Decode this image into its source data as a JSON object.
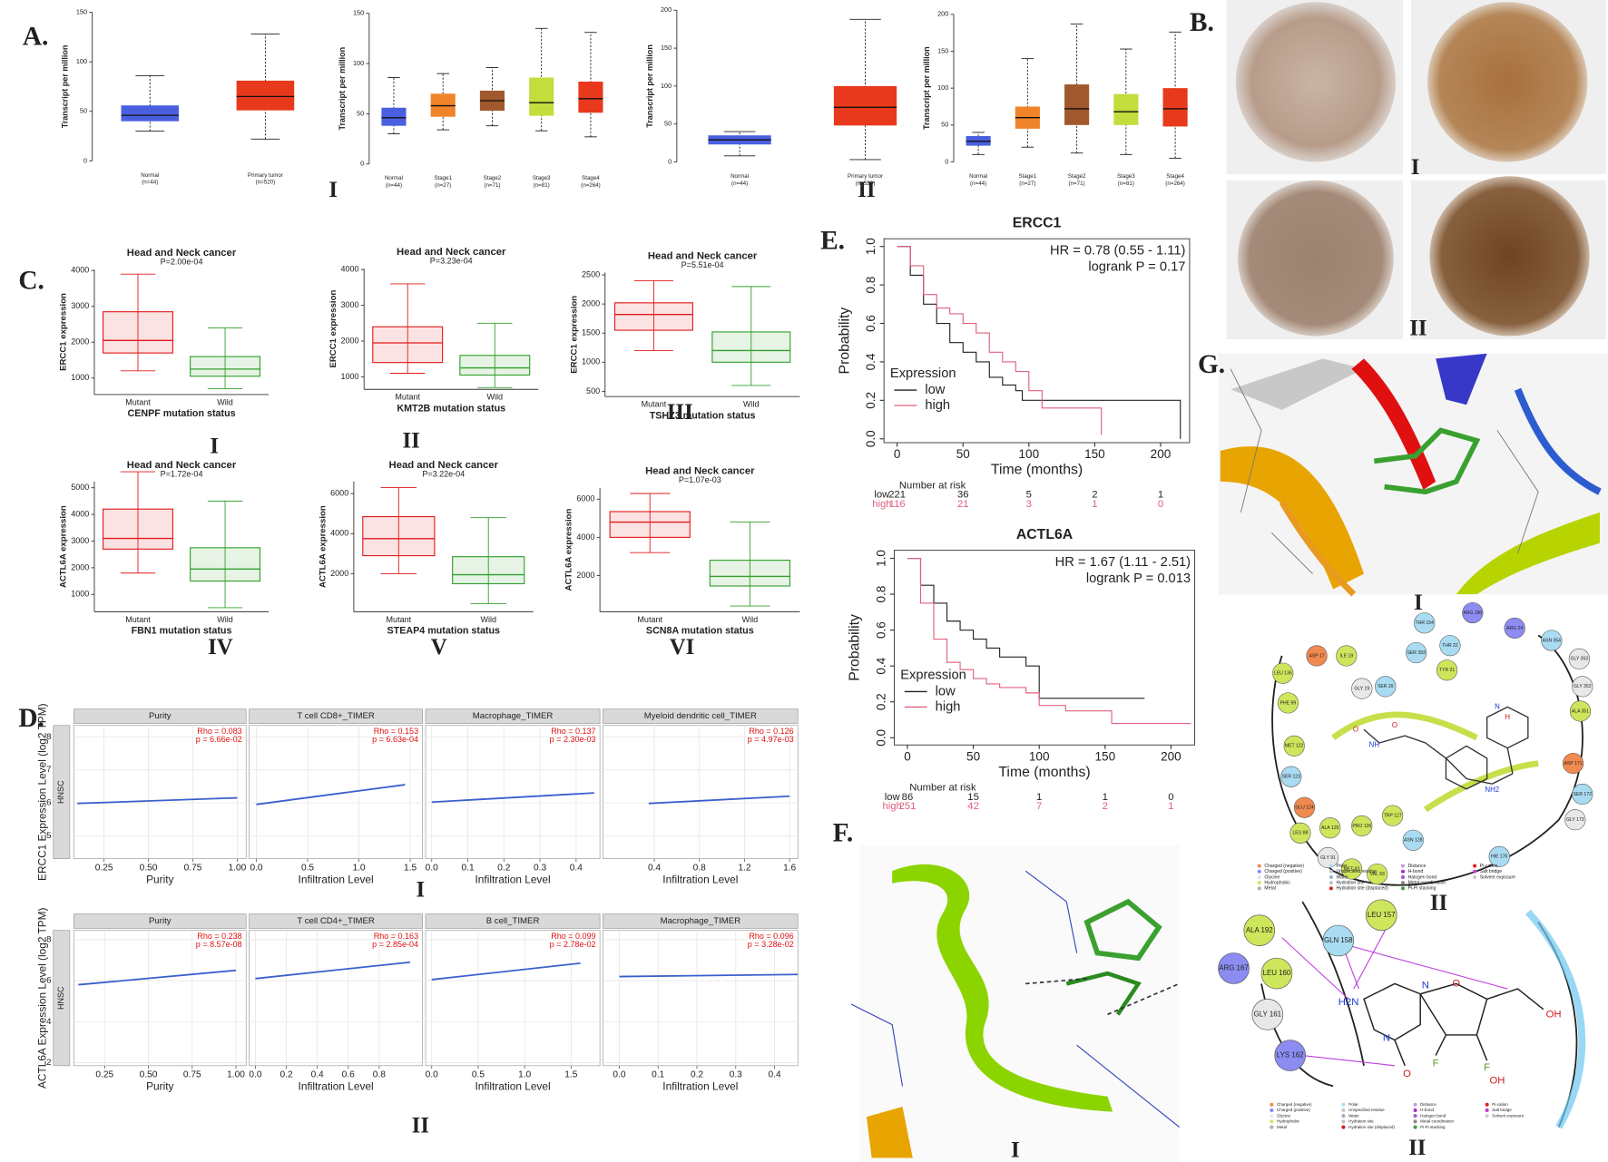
{
  "panel_labels": [
    "A.",
    "B.",
    "C.",
    "D.",
    "E.",
    "F.",
    "G."
  ],
  "numerals": [
    "I",
    "II",
    "I",
    "II",
    "I",
    "II",
    "III",
    "IV",
    "V",
    "VI",
    "I",
    "II",
    "I",
    "II",
    "I",
    "II"
  ],
  "chart_data": [
    {
      "type": "box",
      "ylabel": "Transcript per million",
      "ylim": [
        0,
        150
      ],
      "yticks": [
        0,
        50,
        100,
        150
      ],
      "categories": [
        "Normal",
        "Primary tumor"
      ],
      "n_labels": [
        "(n=44)",
        "(n=520)"
      ],
      "colors": [
        "#4a5fe0",
        "#e8391c"
      ],
      "boxes": [
        {
          "min": 30,
          "q1": 40,
          "median": 46,
          "q3": 56,
          "max": 86
        },
        {
          "min": 22,
          "q1": 51,
          "median": 65,
          "q3": 81,
          "max": 128
        }
      ]
    },
    {
      "type": "box",
      "ylabel": "Transcript per million",
      "ylim": [
        0,
        150
      ],
      "yticks": [
        0,
        50,
        100,
        150
      ],
      "categories": [
        "Normal",
        "Stage1",
        "Stage2",
        "Stage3",
        "Stage4"
      ],
      "n_labels": [
        "(n=44)",
        "(n=27)",
        "(n=71)",
        "(n=81)",
        "(n=264)"
      ],
      "colors": [
        "#4a5fe0",
        "#f0842a",
        "#a0582c",
        "#c3dd3c",
        "#e8391c"
      ],
      "boxes": [
        {
          "min": 30,
          "q1": 38,
          "median": 46,
          "q3": 56,
          "max": 86
        },
        {
          "min": 34,
          "q1": 47,
          "median": 58,
          "q3": 70,
          "max": 90
        },
        {
          "min": 38,
          "q1": 53,
          "median": 63,
          "q3": 73,
          "max": 96
        },
        {
          "min": 33,
          "q1": 48,
          "median": 61,
          "q3": 86,
          "max": 135
        },
        {
          "min": 27,
          "q1": 51,
          "median": 65,
          "q3": 82,
          "max": 131
        }
      ]
    },
    {
      "type": "box",
      "ylabel": "Transcript per million",
      "ylim": [
        0,
        200
      ],
      "yticks": [
        0,
        50,
        100,
        150,
        200
      ],
      "categories": [
        "Normal",
        "Primary tumor"
      ],
      "n_labels": [
        "(n=44)",
        "(n=520)"
      ],
      "colors": [
        "#4a5fe0",
        "#e8391c"
      ],
      "boxes": [
        {
          "min": 8,
          "q1": 23,
          "median": 29,
          "q3": 35,
          "max": 40
        },
        {
          "min": 3,
          "q1": 48,
          "median": 72,
          "q3": 100,
          "max": 188
        }
      ]
    },
    {
      "type": "box",
      "ylabel": "Transcript per million",
      "ylim": [
        0,
        200
      ],
      "yticks": [
        0,
        50,
        100,
        150,
        200
      ],
      "categories": [
        "Normal",
        "Stage1",
        "Stage2",
        "Stage3",
        "Stage4"
      ],
      "n_labels": [
        "(n=44)",
        "(n=27)",
        "(n=71)",
        "(n=81)",
        "(n=264)"
      ],
      "colors": [
        "#4a5fe0",
        "#f0842a",
        "#a0582c",
        "#c3dd3c",
        "#e8391c"
      ],
      "boxes": [
        {
          "min": 10,
          "q1": 22,
          "median": 28,
          "q3": 35,
          "max": 40
        },
        {
          "min": 20,
          "q1": 45,
          "median": 60,
          "q3": 75,
          "max": 140
        },
        {
          "min": 12,
          "q1": 50,
          "median": 72,
          "q3": 105,
          "max": 187
        },
        {
          "min": 10,
          "q1": 50,
          "median": 68,
          "q3": 92,
          "max": 153
        },
        {
          "min": 5,
          "q1": 48,
          "median": 72,
          "q3": 100,
          "max": 176
        }
      ]
    },
    {
      "type": "box",
      "title": "Head and Neck cancer",
      "subtitle": "P=2.00e-04",
      "ylabel": "ERCC1 expression",
      "xlabel": "CENPF mutation status",
      "ylim": [
        540,
        4030
      ],
      "yticks": [
        1000,
        2000,
        3000,
        4000
      ],
      "categories": [
        "Mutant",
        "Wild"
      ],
      "colors": [
        "#e31a1c",
        "#33a02c"
      ],
      "boxes": [
        {
          "min": 1200,
          "q1": 1700,
          "median": 2050,
          "q3": 2850,
          "max": 3900
        },
        {
          "min": 700,
          "q1": 1050,
          "median": 1250,
          "q3": 1600,
          "max": 2400
        }
      ]
    },
    {
      "type": "box",
      "title": "Head and Neck cancer",
      "subtitle": "P=3.23e-04",
      "ylabel": "ERCC1 expression",
      "xlabel": "KMT2B mutation status",
      "ylim": [
        650,
        4030
      ],
      "yticks": [
        1000,
        2000,
        3000,
        4000
      ],
      "categories": [
        "Mutant",
        "Wild"
      ],
      "colors": [
        "#e31a1c",
        "#33a02c"
      ],
      "boxes": [
        {
          "min": 1100,
          "q1": 1400,
          "median": 1950,
          "q3": 2400,
          "max": 3600
        },
        {
          "min": 700,
          "q1": 1050,
          "median": 1250,
          "q3": 1600,
          "max": 2500
        }
      ]
    },
    {
      "type": "box",
      "title": "Head and Neck cancer",
      "subtitle": "P=5.51e-04",
      "ylabel": "ERCC1 expression",
      "xlabel": "TSHZ3 mutation status",
      "ylim": [
        410,
        2540
      ],
      "yticks": [
        500,
        1000,
        1500,
        2000,
        2500
      ],
      "categories": [
        "Mutant",
        "Wild"
      ],
      "colors": [
        "#e31a1c",
        "#33a02c"
      ],
      "boxes": [
        {
          "min": 1200,
          "q1": 1550,
          "median": 1820,
          "q3": 2020,
          "max": 2400
        },
        {
          "min": 600,
          "q1": 1000,
          "median": 1200,
          "q3": 1520,
          "max": 2300
        }
      ]
    },
    {
      "type": "box",
      "title": "Head and Neck cancer",
      "subtitle": "P=1.72e-04",
      "ylabel": "ACTL6A expression",
      "xlabel": "FBN1 mutation status",
      "ylim": [
        350,
        5230
      ],
      "yticks": [
        1000,
        2000,
        3000,
        4000,
        5000
      ],
      "categories": [
        "Mutant",
        "Wild"
      ],
      "colors": [
        "#e31a1c",
        "#33a02c"
      ],
      "boxes": [
        {
          "min": 1800,
          "q1": 2700,
          "median": 3100,
          "q3": 4200,
          "max": 5600
        },
        {
          "min": 500,
          "q1": 1500,
          "median": 1950,
          "q3": 2750,
          "max": 4500
        }
      ]
    },
    {
      "type": "box",
      "title": "Head and Neck cancer",
      "subtitle": "P=3.22e-04",
      "ylabel": "ACTL6A expression",
      "xlabel": "STEAP4 mutation status",
      "ylim": [
        100,
        6600
      ],
      "yticks": [
        2000,
        4000,
        6000
      ],
      "categories": [
        "Mutant",
        "Wild"
      ],
      "colors": [
        "#e31a1c",
        "#33a02c"
      ],
      "boxes": [
        {
          "min": 2000,
          "q1": 2900,
          "median": 3750,
          "q3": 4850,
          "max": 6300
        },
        {
          "min": 500,
          "q1": 1500,
          "median": 1950,
          "q3": 2850,
          "max": 4800
        }
      ]
    },
    {
      "type": "box",
      "title": "Head and Neck cancer",
      "subtitle": "P=1.07e-03",
      "ylabel": "ACTL6A expression",
      "xlabel": "SCN8A mutation status",
      "ylim": [
        100,
        6600
      ],
      "yticks": [
        2000,
        4000,
        6000
      ],
      "categories": [
        "Mutant",
        "Wild"
      ],
      "colors": [
        "#e31a1c",
        "#33a02c"
      ],
      "boxes": [
        {
          "min": 3200,
          "q1": 4000,
          "median": 4800,
          "q3": 5350,
          "max": 6300
        },
        {
          "min": 400,
          "q1": 1450,
          "median": 1950,
          "q3": 2800,
          "max": 4800
        }
      ]
    },
    {
      "type": "facets",
      "ylabel": "ERCC1 Expression Level (log2 TPM)",
      "strip": "HNSC",
      "ylim": [
        4.3,
        8.35
      ],
      "yticks": [
        5,
        6,
        7,
        8
      ],
      "fit_color": "#3a5fcd",
      "panels": [
        {
          "title": "Purity",
          "xlabel": "Purity",
          "xlim": [
            0.08,
            1.05
          ],
          "xticks": [
            0.25,
            {
              "value": 0.5,
              "label": "0.50"
            },
            0.75,
            {
              "value": 1,
              "label": "1.00"
            }
          ],
          "annotations": [
            "Rho = 0.083",
            "p = 6.66e-02"
          ],
          "fit": {
            "x": [
              0.1,
              1.0
            ],
            "y": [
              5.98,
              6.15
            ]
          }
        },
        {
          "title": "T cell CD8+_TIMER",
          "xlabel": "Infiltration Level",
          "xlim": [
            -0.07,
            1.62
          ],
          "xticks": [
            {
              "value": 0,
              "label": "0.0"
            },
            0.5,
            {
              "value": 1,
              "label": "1.0"
            },
            1.5
          ],
          "annotations": [
            "Rho = 0.153",
            "p = 6.63e-04"
          ],
          "fit": {
            "x": [
              0.0,
              1.45
            ],
            "y": [
              5.95,
              6.55
            ]
          }
        },
        {
          "title": "Macrophage_TIMER",
          "xlabel": "Infiltration Level",
          "xlim": [
            -0.017,
            0.466
          ],
          "xticks": [
            {
              "value": 0,
              "label": "0.0"
            },
            0.1,
            0.2,
            0.3,
            0.4
          ],
          "annotations": [
            "Rho = 0.137",
            "p = 2.30e-03"
          ],
          "fit": {
            "x": [
              0.0,
              0.45
            ],
            "y": [
              6.02,
              6.3
            ]
          }
        },
        {
          "title": "Myeloid dendritic cell_TIMER",
          "xlabel": "Infiltration Level",
          "xlim": [
            -0.055,
            1.673
          ],
          "xticks": [
            0.4,
            0.8,
            1.2,
            1.6
          ],
          "annotations": [
            "Rho = 0.126",
            "p = 4.97e-03"
          ],
          "fit": {
            "x": [
              0.35,
              1.6
            ],
            "y": [
              5.98,
              6.2
            ]
          }
        }
      ]
    },
    {
      "type": "facets",
      "ylabel": "ACTL6A Expression Level (log2 TPM)",
      "strip": "HNSC",
      "ylim": [
        1.85,
        8.45
      ],
      "yticks": [
        2,
        4,
        6,
        8
      ],
      "fit_color": "#3a5fcd",
      "panels": [
        {
          "title": "Purity",
          "xlabel": "Purity",
          "xlim": [
            0.074,
            1.058
          ],
          "xticks": [
            0.25,
            {
              "value": 0.5,
              "label": "0.50"
            },
            0.75,
            {
              "value": 1,
              "label": "1.00"
            }
          ],
          "annotations": [
            "Rho = 0.238",
            "p = 8.57e-08"
          ],
          "fit": {
            "x": [
              0.1,
              1.0
            ],
            "y": [
              5.8,
              6.5
            ]
          }
        },
        {
          "title": "T cell CD4+_TIMER",
          "xlabel": "Infiltration Level",
          "xlim": [
            -0.04,
            1.08
          ],
          "xticks": [
            {
              "value": 0,
              "label": "0.0"
            },
            0.2,
            0.4,
            0.6,
            0.8
          ],
          "annotations": [
            "Rho = 0.163",
            "p = 2.85e-04"
          ],
          "fit": {
            "x": [
              0.0,
              1.0
            ],
            "y": [
              6.1,
              6.9
            ]
          }
        },
        {
          "title": "B cell_TIMER",
          "xlabel": "Infiltration Level",
          "xlim": [
            -0.066,
            1.81
          ],
          "xticks": [
            {
              "value": 0,
              "label": "0.0"
            },
            0.5,
            {
              "value": 1,
              "label": "1.0"
            },
            1.5
          ],
          "annotations": [
            "Rho = 0.099",
            "p = 2.78e-02"
          ],
          "fit": {
            "x": [
              0.0,
              1.6
            ],
            "y": [
              6.05,
              6.85
            ]
          }
        },
        {
          "title": "Macrophage_TIMER",
          "xlabel": "Infiltration Level",
          "xlim": [
            -0.042,
            0.46
          ],
          "xticks": [
            {
              "value": 0,
              "label": "0.0"
            },
            0.1,
            0.2,
            0.3,
            0.4
          ],
          "annotations": [
            "Rho = 0.096",
            "p = 3.28e-02"
          ],
          "fit": {
            "x": [
              0.0,
              0.46
            ],
            "y": [
              6.2,
              6.3
            ]
          }
        }
      ]
    },
    {
      "type": "km",
      "title": "ERCC1",
      "annotations": [
        "HR = 0.78 (0.55 - 1.11)",
        "logrank P = 0.17"
      ],
      "ylabel": "Probability",
      "xlabel": "Time (months)",
      "legend_title": "Expression",
      "xlim": [
        -10,
        222
      ],
      "xticks": [
        0,
        50,
        100,
        150,
        200
      ],
      "ylim": [
        -0.02,
        1.04
      ],
      "yticks": [
        {
          "value": 0,
          "label": "0.0"
        },
        0.2,
        0.4,
        0.6,
        0.8,
        {
          "value": 1,
          "label": "1.0"
        }
      ],
      "series": [
        {
          "name": "low",
          "color": "#222222",
          "x": [
            0,
            10,
            20,
            30,
            40,
            50,
            60,
            70,
            80,
            90,
            95,
            210,
            215
          ],
          "values": [
            1,
            0.85,
            0.7,
            0.6,
            0.5,
            0.45,
            0.4,
            0.32,
            0.28,
            0.25,
            0.2,
            0.2,
            0
          ]
        },
        {
          "name": "high",
          "color": "#e0607e",
          "x": [
            0,
            10,
            20,
            30,
            40,
            50,
            60,
            70,
            80,
            90,
            100,
            110,
            155
          ],
          "values": [
            1,
            0.9,
            0.75,
            0.68,
            0.65,
            0.6,
            0.55,
            0.45,
            0.4,
            0.35,
            0.25,
            0.16,
            0.02
          ]
        }
      ],
      "risk_title": "Number at risk",
      "risk": [
        {
          "name": "low",
          "values": [
            221,
            36,
            5,
            2,
            1
          ]
        },
        {
          "name": "high",
          "values": [
            116,
            21,
            3,
            1,
            0
          ]
        }
      ]
    },
    {
      "type": "km",
      "title": "ACTL6A",
      "annotations": [
        "HR = 1.67 (1.11 - 2.51)",
        "logrank P = 0.013"
      ],
      "ylabel": "Probability",
      "xlabel": "Time (months)",
      "legend_title": "Expression",
      "xlim": [
        -10,
        218
      ],
      "xticks": [
        0,
        50,
        100,
        150,
        200
      ],
      "ylim": [
        -0.04,
        1.045
      ],
      "yticks": [
        {
          "value": 0,
          "label": "0.0"
        },
        0.2,
        0.4,
        0.6,
        0.8,
        {
          "value": 1,
          "label": "1.0"
        }
      ],
      "series": [
        {
          "name": "low",
          "color": "#222222",
          "x": [
            0,
            10,
            20,
            30,
            40,
            50,
            60,
            70,
            90,
            100,
            180
          ],
          "values": [
            1,
            0.85,
            0.75,
            0.65,
            0.6,
            0.55,
            0.5,
            0.45,
            0.4,
            0.22,
            0.22
          ]
        },
        {
          "name": "high",
          "color": "#e0607e",
          "x": [
            0,
            10,
            20,
            30,
            40,
            50,
            60,
            70,
            90,
            100,
            120,
            150,
            155,
            215
          ],
          "values": [
            1,
            0.75,
            0.55,
            0.42,
            0.38,
            0.33,
            0.3,
            0.28,
            0.25,
            0.18,
            0.15,
            0.15,
            0.08,
            0.08
          ]
        }
      ],
      "risk_title": "Number at risk",
      "risk": [
        {
          "name": "low",
          "values": [
            86,
            15,
            1,
            1,
            0
          ]
        },
        {
          "name": "high",
          "values": [
            251,
            42,
            7,
            2,
            1
          ]
        }
      ]
    }
  ],
  "g2": {
    "residues": [
      "THR 154",
      "ARG 190",
      "ARG 24",
      "ASN 354",
      "GLY 353",
      "GLY 352",
      "ALA 351",
      "ASP 17",
      "ILE 19",
      "SER 393",
      "THR 22",
      "TYR 21",
      "GLY 19",
      "SER 20",
      "LEU 136",
      "PHE 99",
      "MET 122",
      "SER 123",
      "GLU 124",
      "ASP 171",
      "SER 172",
      "GLY 173",
      "LEU 88",
      "ALA 125",
      "PRO 126",
      "TRP 127",
      "ASN 128",
      "GLY 91",
      "MET 92",
      "VAL 93",
      "HIE 176"
    ],
    "atoms": [
      "O",
      "NH",
      "O",
      "NH2",
      "H",
      "N"
    ]
  },
  "f2": {
    "residues": [
      "ALA 192",
      "GLN 158",
      "LEU 157",
      "ARG 167",
      "LEU 160",
      "GLY 161",
      "LYS 162"
    ],
    "atoms": [
      "H2N",
      "N",
      "N",
      "O",
      "O",
      "F",
      "F",
      "OH",
      "OH"
    ]
  },
  "legend": [
    "Charged (negative)",
    "Charged (positive)",
    "Glycine",
    "Hydrophobic",
    "Metal",
    "Polar",
    "Unspecified residue",
    "Water",
    "Hydration site",
    "Hydration site (displaced)",
    "Distance",
    "H-bond",
    "Halogen bond",
    "Metal coordination",
    "Pi-Pi stacking",
    "Pi-cation",
    "Salt bridge",
    "Solvent exposure"
  ]
}
